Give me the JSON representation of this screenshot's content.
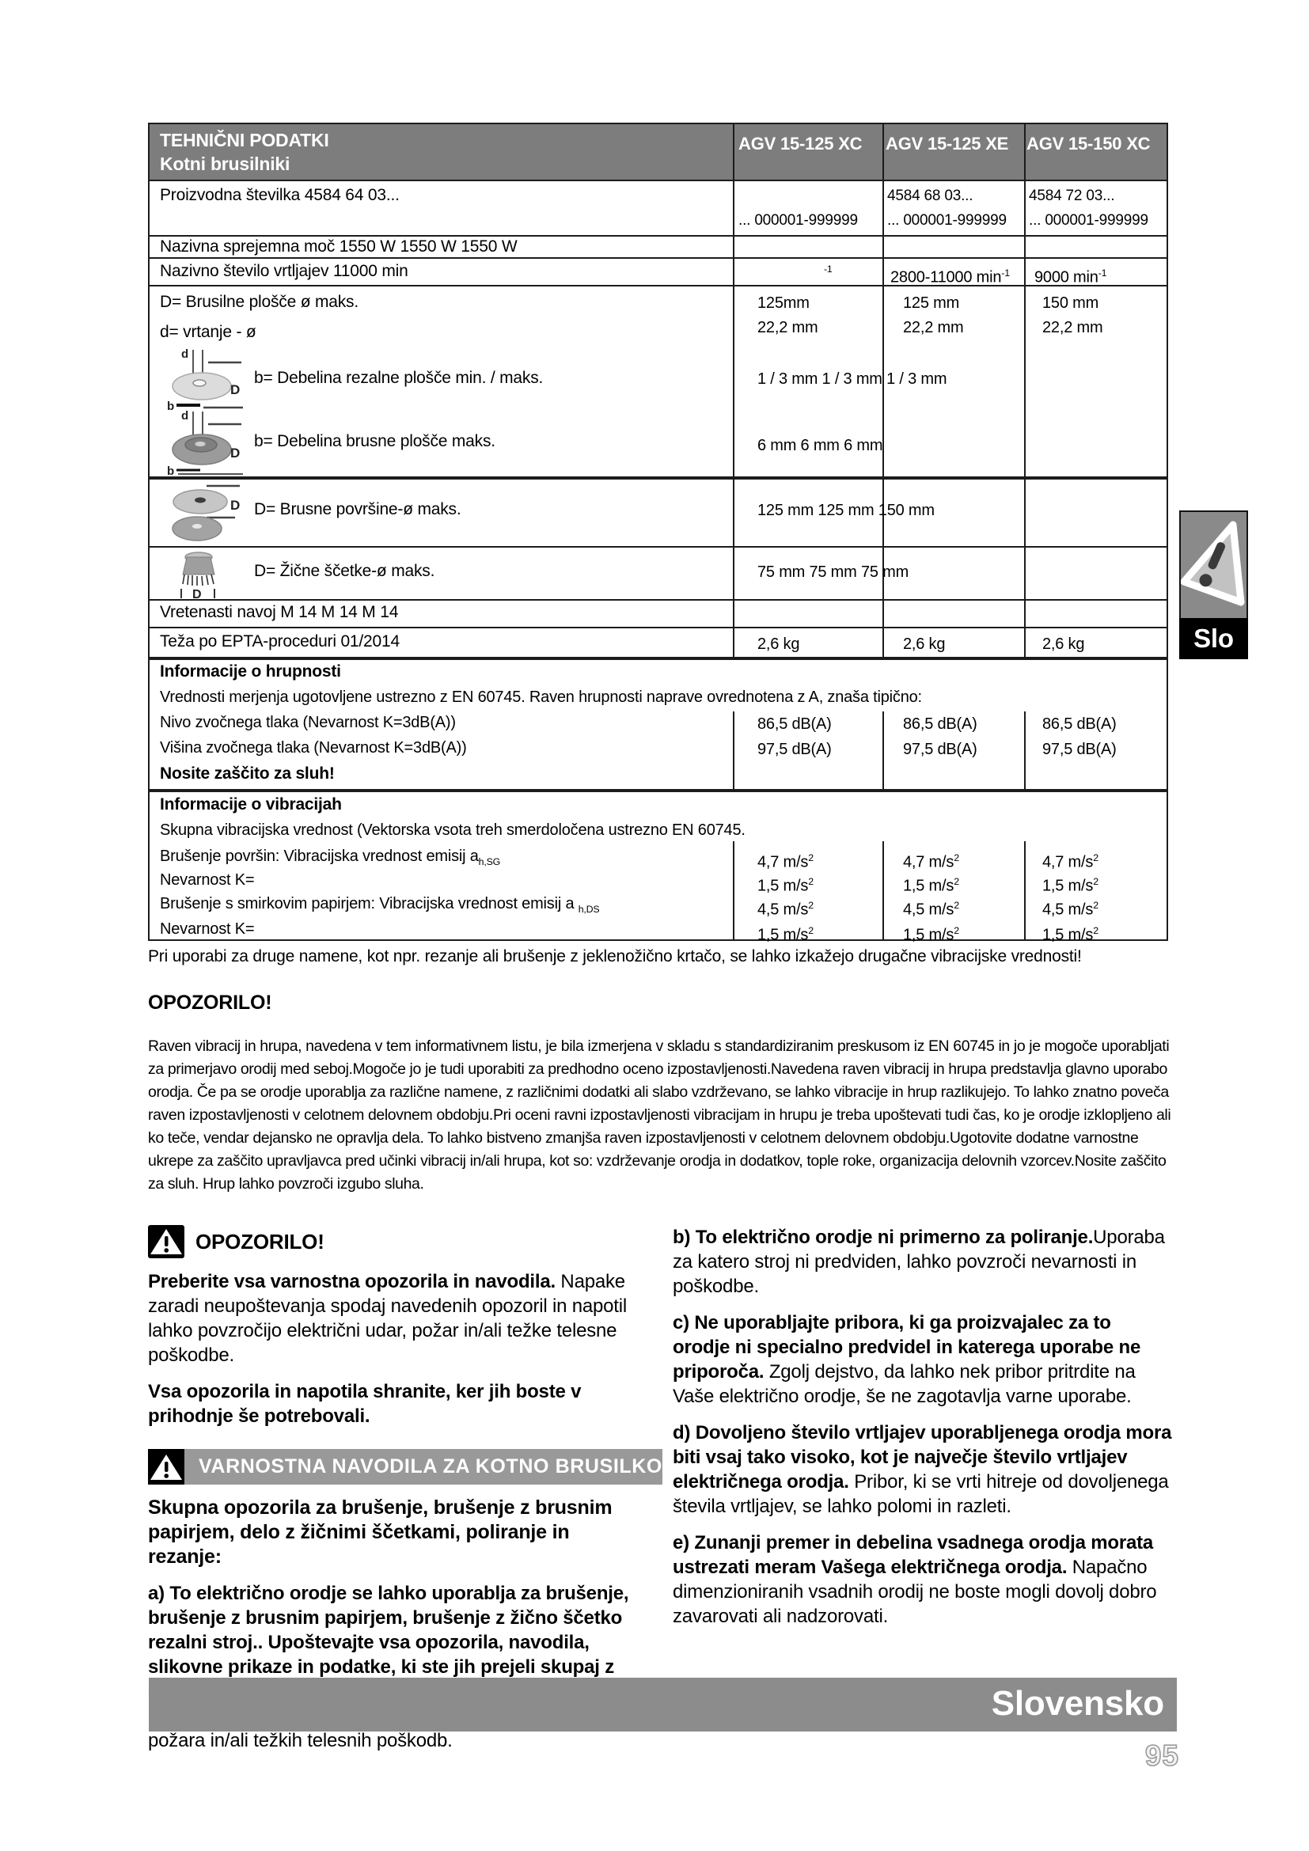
{
  "colors": {
    "table_header_bg": "#7d7d7d",
    "safety_banner_bg": "#999999",
    "language_banner_bg": "#8c8c8c",
    "side_tab_bg": "#8a8a8a",
    "side_tab_label_bg": "#000000"
  },
  "table": {
    "header": {
      "title_line1": "TEHNIČNI PODATKI",
      "title_line2": "Kotni brusilniki",
      "columns": [
        "AGV 15-125 XC",
        "AGV 15-125 XE",
        "AGV 15-150 XC"
      ]
    },
    "production": {
      "label": "Proizvodna številka 4584 64 03...",
      "col1_range": "... 000001-999999",
      "col2": "4584 68 03...<br>... 000001-999999",
      "col3": "4584 72 03...<br>... 000001-999999"
    },
    "power": {
      "label": "Nazivna sprejemna moč 1550 W 1550 W 1550 W"
    },
    "speed": {
      "label": "Nazivno število vrtljajev 11000 min",
      "col1": "<sup>-1</sup>",
      "col2": "2800-11000 min<sup>-1</sup>",
      "col3": "9000 min<sup>-1</sup>"
    },
    "disc": {
      "label_big": "D= Brusilne plošče ø maks.",
      "label_small": "d= vrtanje - ø",
      "col1": "125mm<br>22,2 mm",
      "col2": "125 mm<br>22,2 mm",
      "col3": "150 mm<br>22,2 mm"
    },
    "cutting_thickness": {
      "label": "b= Debelina rezalne plošče min. / maks.",
      "values": "1 / 3 mm 1 / 3 mm 1 / 3 mm"
    },
    "grinding_thickness": {
      "label": "b= Debelina brusne plošče maks.",
      "values": "6 mm 6 mm 6 mm"
    },
    "surface": {
      "label": "D= Brusne površine-ø maks.",
      "values": "125 mm 125 mm 150 mm"
    },
    "wire_brush": {
      "label": "D= Žične ščetke-ø maks.",
      "values": "75 mm 75 mm 75 mm"
    },
    "thread": {
      "label": "Vretenasti navoj M 14 M 14 M 14"
    },
    "weight": {
      "label": "Teža po EPTA-proceduri 01/2014",
      "col1": "2,6 kg",
      "col2": "2,6 kg",
      "col3": "2,6 kg"
    },
    "noise": {
      "title": "Informacije o hrupnosti",
      "subtitle": "Vrednosti merjenja ugotovljene ustrezno z EN 60745. Raven hrupnosti naprave ovrednotena z A, znaša tipično:",
      "rows": [
        {
          "label": "Nivo zvočnega tlaka (Nevarnost K=3dB(A))",
          "col1": "86,5 dB(A)",
          "col2": "86,5 dB(A)",
          "col3": "86,5 dB(A)"
        },
        {
          "label": "Višina zvočnega tlaka (Nevarnost K=3dB(A))",
          "col1": "97,5 dB(A)",
          "col2": "97,5 dB(A)",
          "col3": "97,5 dB(A)"
        }
      ],
      "warning": "Nosite zaščito za sluh!"
    },
    "vibration": {
      "title": "Informacije o vibracijah",
      "subtitle": "Skupna vibracijska vrednost (Vektorska vsota treh smerdoločena ustrezno EN 60745.",
      "rows": [
        {
          "label": "Brušenje površin: Vibracijska vrednost emisij a<sub>h,SG</sub>",
          "col1": "4,7 m/s<sup>2</sup>",
          "col2": "4,7 m/s<sup>2</sup>",
          "col3": "4,7 m/s<sup>2</sup>"
        },
        {
          "label": "Nevarnost K=",
          "col1": "1,5 m/s<sup>2</sup>",
          "col2": "1,5 m/s<sup>2</sup>",
          "col3": "1,5 m/s<sup>2</sup>"
        },
        {
          "label": "Brušenje s smirkovim papirjem: Vibracijska vrednost emisij a <sub>h,DS</sub>",
          "col1": "4,5 m/s<sup>2</sup>",
          "col2": "4,5 m/s<sup>2</sup>",
          "col3": "4,5 m/s<sup>2</sup>"
        },
        {
          "label": "Nevarnost K=",
          "col1": "1,5 m/s<sup>2</sup>",
          "col2": "1,5 m/s<sup>2</sup>",
          "col3": "1,5 m/s<sup>2</sup>"
        }
      ]
    }
  },
  "notes": {
    "other_use": "Pri uporabi za druge namene, kot npr. rezanje ali brušenje z jeklenožično krtačo, se lahko izkažejo drugačne vibracijske vrednosti!",
    "warning_title": "OPOZORILO!",
    "body": "Raven vibracij in hrupa, navedena v tem informativnem listu, je bila izmerjena v skladu s standardiziranim preskusom iz EN 60745 in jo je mogoče uporabljati za primerjavo orodij med seboj.Mogoče jo je tudi uporabiti za predhodno oceno izpostavljenosti.Navedena raven vibracij in hrupa predstavlja glavno uporabo orodja. Če pa se orodje uporablja za različne namene, z različnimi dodatki ali slabo vzdrževano, se lahko vibracije in hrup razlikujejo. To lahko znatno poveča raven izpostavljenosti v celotnem delovnem obdobju.Pri oceni ravni izpostavljenosti vibracijam in hrupu je treba upoštevati tudi čas, ko je orodje izklopljeno ali ko teče, vendar dejansko ne opravlja dela. To lahko bistveno zmanjša raven izpostavljenosti v celotnem delovnem obdobju.Ugotovite dodatne varnostne ukrepe za zaščito upravljavca pred učinki vibracij in/ali hrupa, kot so: vzdrževanje orodja in dodatkov, tople roke, organizacija delovnih vzorcev.Nosite zaščito za sluh. Hrup lahko povzroči izgubo sluha."
  },
  "left_column": {
    "warning_title": "OPOZORILO!",
    "p1_bold": "Preberite vsa varnostna opozorila in navodila.",
    "p1_rest": " Napake zaradi neupoštevanja spodaj navedenih opozoril in napotil lahko povzročijo električni udar, požar in/ali težke telesne poškodbe.",
    "p2_bold": "Vsa opozorila in napotila shranite, ker jih boste v prihodnje še potrebovali.",
    "banner": "VARNOSTNA NAVODILA ZA KOTNO BRUSILKO",
    "intro_bold": "Skupna opozorila za brušenje, brušenje z brusnim papirjem, delo z žičnimi ščetkami, poliranje in rezanje:",
    "a_bold": "a)  To električno orodje se lahko uporablja za brušenje, brušenje z brusnim papirjem, brušenje z žično ščetko rezalni stroj.. Upoštevajte vsa opozorila, navodila, slikovne prikaze in podatke, ki ste jih prejeli skupaj z električnim orodjem.",
    "a_rest": " Zaradi nespoštovanja spodaj navedenih navodil lahko pride do električnega udara, požara in/ali težkih telesnih poškodb."
  },
  "right_column": {
    "b_bold": "b)  To električno orodje ni primerno za poliranje.",
    "b_rest": "Uporaba za katero stroj ni predviden, lahko povzroči nevarnosti in poškodbe.",
    "c_bold": "c)  Ne uporabljajte pribora, ki ga proizvajalec za to orodje ni specialno predvidel in katerega uporabe ne priporoča.",
    "c_rest": " Zgolj dejstvo, da lahko nek pribor pritrdite na Vaše električno orodje, še ne zagotavlja varne uporabe.",
    "d_bold": "d)  Dovoljeno število vrtljajev uporabljenega orodja mora biti vsaj tako visoko, kot je največje število vrtljajev električnega orodja.",
    "d_rest": " Pribor, ki se vrti hitreje od dovoljenega števila vrtljajev, se lahko polomi in razleti.",
    "e_bold": "e)  Zunanji premer in debelina vsadnega orodja morata ustrezati meram Vašega električnega orodja.",
    "e_rest": " Napačno dimenzioniranih vsadnih orodij ne boste mogli dovolj dobro zavarovati ali nadzorovati."
  },
  "footer": {
    "language_banner": "Slovensko",
    "page_number": "95",
    "side_tab_label": "Slo"
  }
}
